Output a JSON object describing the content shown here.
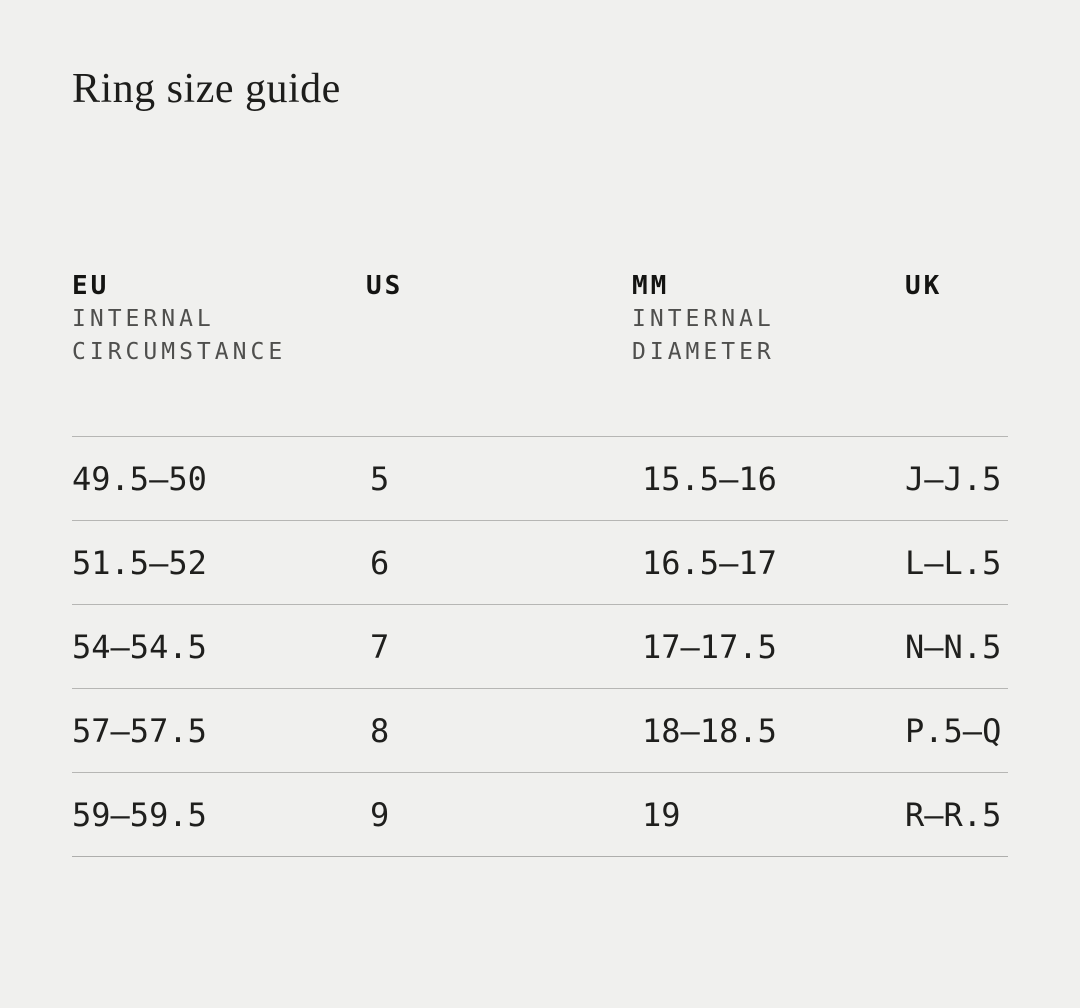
{
  "page": {
    "title": "Ring size guide",
    "background_color": "#f0f0ee",
    "text_color": "#1f1f1d",
    "subtitle_color": "#4f4f4d",
    "divider_color": "#b6b6b4"
  },
  "table": {
    "columns": [
      {
        "code": "EU",
        "sub_line_1": "INTERNAL",
        "sub_line_2": "CIRCUMSTANCE"
      },
      {
        "code": "US",
        "sub_line_1": "",
        "sub_line_2": ""
      },
      {
        "code": "MM",
        "sub_line_1": "INTERNAL",
        "sub_line_2": "DIAMETER"
      },
      {
        "code": "UK",
        "sub_line_1": "",
        "sub_line_2": ""
      }
    ],
    "rows": [
      {
        "eu": "49.5—50",
        "us": "5",
        "mm": "15.5—16",
        "uk": "J—J.5"
      },
      {
        "eu": "51.5—52",
        "us": "6",
        "mm": "16.5—17",
        "uk": "L—L.5"
      },
      {
        "eu": "54—54.5",
        "us": "7",
        "mm": "17—17.5",
        "uk": "N—N.5"
      },
      {
        "eu": "57—57.5",
        "us": "8",
        "mm": "18—18.5",
        "uk": "P.5—Q"
      },
      {
        "eu": "59—59.5",
        "us": "9",
        "mm": "19",
        "uk": "R—R.5"
      }
    ]
  }
}
